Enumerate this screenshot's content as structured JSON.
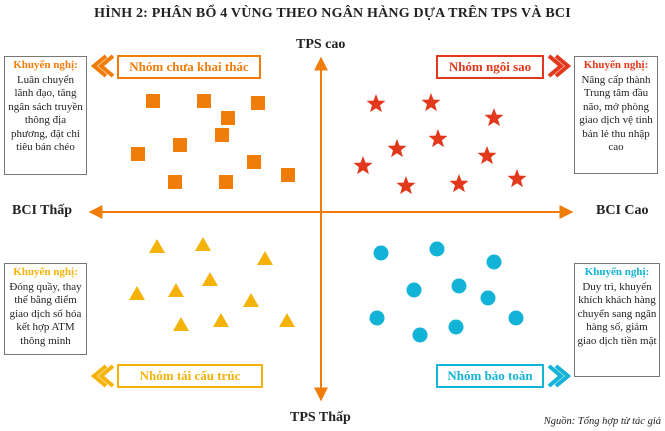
{
  "title": "HÌNH 2: PHÂN BỔ 4 VÙNG THEO NGÂN HÀNG DỰA TRÊN TPS VÀ BCI",
  "axes": {
    "top": "TPS cao",
    "bottom": "TPS Thấp",
    "left": "BCI Thấp",
    "right": "BCI Cao"
  },
  "quadrants": {
    "top_left": {
      "group_label": "Nhóm chưa khai thác",
      "color": "#f07c0a",
      "marker": "square",
      "rec_head": "Khuyến nghị:",
      "rec_body": "Luân chuyển lãnh đạo, tăng ngân sách truyền thông địa phương, đặt chỉ tiêu bán chéo"
    },
    "top_right": {
      "group_label": "Nhóm ngôi sao",
      "color": "#e2381c",
      "marker": "star",
      "rec_head": "Khuyến nghị:",
      "rec_body": "Nâng cấp thành Trung tâm đầu não, mở phòng giao dịch vệ tinh bán lẻ thu nhập cao"
    },
    "bottom_left": {
      "group_label": "Nhóm tái cấu trúc",
      "color": "#f5b30a",
      "marker": "triangle",
      "rec_head": "Khuyến nghị:",
      "rec_body": "Đóng quầy, thay thế bằng điểm giao dịch số hóa kết hợp ATM thông minh"
    },
    "bottom_right": {
      "group_label": "Nhóm bảo toàn",
      "color": "#12b3d6",
      "marker": "circle",
      "rec_head": "Khuyến nghị:",
      "rec_body": "Duy trì, khuyến khích khách hàng chuyển sang ngân hàng số, giảm giao dịch tiền mặt"
    }
  },
  "axis_color": "#f07c0a",
  "source": "Nguồn: Tổng hợp từ tác giả"
}
